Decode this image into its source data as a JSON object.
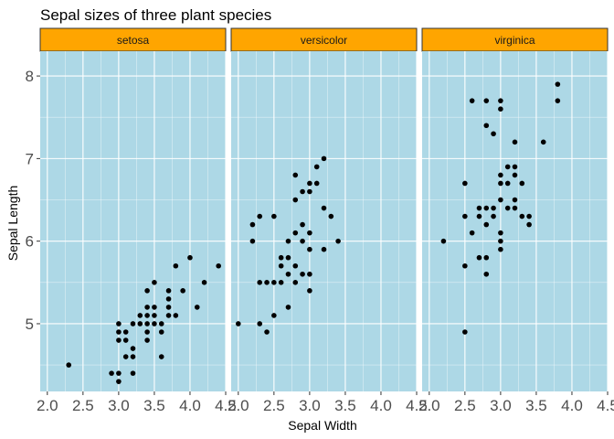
{
  "chart_data": {
    "type": "scatter",
    "title": "Sepal sizes of three plant species",
    "xlabel": "Sepal Width",
    "ylabel": "Sepal Length",
    "xlim": [
      1.9,
      4.5
    ],
    "ylim": [
      4.18,
      8.3
    ],
    "xticks": [
      2.0,
      2.5,
      3.0,
      3.5,
      4.0,
      4.5
    ],
    "xtick_labels": [
      "2.0",
      "2.5",
      "3.0",
      "3.5",
      "4.0",
      "4.5"
    ],
    "yticks": [
      5,
      6,
      7,
      8
    ],
    "ytick_labels": [
      "5",
      "6",
      "7",
      "8"
    ],
    "grid": true,
    "panel_background": "#add8e6",
    "strip_background": "#ffa500",
    "point_color": "#000000",
    "facets": [
      {
        "name": "setosa",
        "points": [
          [
            2.3,
            4.5
          ],
          [
            2.9,
            4.4
          ],
          [
            3.0,
            4.4
          ],
          [
            3.0,
            4.3
          ],
          [
            3.2,
            4.4
          ],
          [
            3.0,
            4.8
          ],
          [
            3.0,
            4.9
          ],
          [
            3.1,
            4.9
          ],
          [
            3.1,
            4.8
          ],
          [
            3.0,
            5.0
          ],
          [
            3.1,
            4.6
          ],
          [
            3.2,
            4.6
          ],
          [
            3.2,
            4.7
          ],
          [
            3.2,
            5.0
          ],
          [
            3.3,
            5.0
          ],
          [
            3.4,
            4.8
          ],
          [
            3.4,
            5.0
          ],
          [
            3.4,
            5.1
          ],
          [
            3.4,
            5.2
          ],
          [
            3.4,
            5.4
          ],
          [
            3.5,
            5.0
          ],
          [
            3.5,
            5.1
          ],
          [
            3.5,
            5.2
          ],
          [
            3.5,
            5.5
          ],
          [
            3.6,
            4.6
          ],
          [
            3.6,
            4.9
          ],
          [
            3.6,
            5.0
          ],
          [
            3.7,
            5.1
          ],
          [
            3.7,
            5.3
          ],
          [
            3.7,
            5.4
          ],
          [
            3.8,
            5.1
          ],
          [
            3.8,
            5.7
          ],
          [
            3.9,
            5.4
          ],
          [
            4.0,
            5.8
          ],
          [
            4.1,
            5.2
          ],
          [
            4.2,
            5.5
          ],
          [
            4.4,
            5.7
          ],
          [
            3.3,
            5.1
          ],
          [
            3.4,
            4.9
          ],
          [
            3.7,
            5.2
          ]
        ]
      },
      {
        "name": "versicolor",
        "points": [
          [
            2.0,
            5.0
          ],
          [
            2.2,
            6.0
          ],
          [
            2.2,
            6.2
          ],
          [
            2.3,
            6.3
          ],
          [
            2.3,
            5.0
          ],
          [
            2.3,
            5.5
          ],
          [
            2.4,
            5.5
          ],
          [
            2.4,
            4.9
          ],
          [
            2.5,
            5.5
          ],
          [
            2.5,
            5.1
          ],
          [
            2.5,
            6.3
          ],
          [
            2.6,
            5.5
          ],
          [
            2.6,
            5.7
          ],
          [
            2.6,
            5.8
          ],
          [
            2.7,
            5.2
          ],
          [
            2.7,
            5.6
          ],
          [
            2.7,
            5.8
          ],
          [
            2.7,
            6.0
          ],
          [
            2.8,
            5.5
          ],
          [
            2.8,
            5.7
          ],
          [
            2.8,
            6.1
          ],
          [
            2.8,
            6.5
          ],
          [
            2.8,
            6.8
          ],
          [
            2.9,
            5.6
          ],
          [
            2.9,
            6.0
          ],
          [
            2.9,
            6.2
          ],
          [
            2.9,
            6.6
          ],
          [
            3.0,
            5.4
          ],
          [
            3.0,
            5.6
          ],
          [
            3.0,
            5.9
          ],
          [
            3.0,
            6.1
          ],
          [
            3.0,
            6.7
          ],
          [
            3.1,
            6.7
          ],
          [
            3.1,
            6.9
          ],
          [
            3.2,
            5.9
          ],
          [
            3.2,
            6.4
          ],
          [
            3.2,
            7.0
          ],
          [
            3.3,
            6.3
          ],
          [
            3.4,
            6.0
          ],
          [
            3.0,
            6.6
          ]
        ]
      },
      {
        "name": "virginica",
        "points": [
          [
            2.2,
            6.0
          ],
          [
            2.5,
            4.9
          ],
          [
            2.5,
            5.7
          ],
          [
            2.5,
            6.3
          ],
          [
            2.5,
            6.7
          ],
          [
            2.6,
            6.1
          ],
          [
            2.6,
            7.7
          ],
          [
            2.7,
            5.8
          ],
          [
            2.7,
            6.3
          ],
          [
            2.7,
            6.4
          ],
          [
            2.8,
            5.6
          ],
          [
            2.8,
            5.8
          ],
          [
            2.8,
            6.2
          ],
          [
            2.8,
            6.4
          ],
          [
            2.8,
            7.4
          ],
          [
            2.8,
            7.7
          ],
          [
            2.9,
            6.3
          ],
          [
            2.9,
            7.3
          ],
          [
            3.0,
            5.9
          ],
          [
            3.0,
            6.0
          ],
          [
            3.0,
            6.1
          ],
          [
            3.0,
            6.5
          ],
          [
            3.0,
            6.7
          ],
          [
            3.0,
            6.8
          ],
          [
            3.0,
            7.6
          ],
          [
            3.0,
            7.7
          ],
          [
            3.1,
            6.4
          ],
          [
            3.1,
            6.7
          ],
          [
            3.1,
            6.9
          ],
          [
            3.2,
            6.4
          ],
          [
            3.2,
            6.5
          ],
          [
            3.2,
            6.8
          ],
          [
            3.2,
            6.9
          ],
          [
            3.2,
            7.2
          ],
          [
            3.3,
            6.3
          ],
          [
            3.3,
            6.7
          ],
          [
            3.4,
            6.2
          ],
          [
            3.4,
            6.3
          ],
          [
            3.6,
            7.2
          ],
          [
            3.8,
            7.7
          ],
          [
            3.8,
            7.9
          ],
          [
            2.9,
            6.4
          ]
        ]
      }
    ]
  }
}
